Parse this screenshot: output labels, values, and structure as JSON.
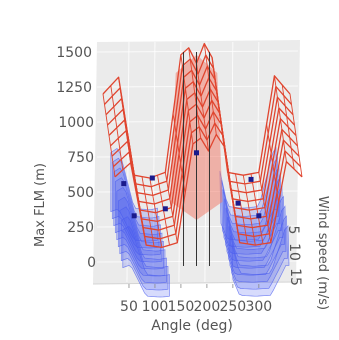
{
  "chart_data": {
    "type": "surface-3d",
    "title": "",
    "xlabel": "Angle (deg)",
    "ylabel": "Wind speed (m/s)",
    "zlabel": "Max FLM (m)",
    "x_ticks": [
      "50",
      "100",
      "150",
      "200",
      "250",
      "300"
    ],
    "y_ticks": [
      "5",
      "10",
      "15"
    ],
    "z_ticks": [
      "0",
      "250",
      "500",
      "750",
      "1000",
      "1250",
      "1500"
    ],
    "xlim": [
      0,
      360
    ],
    "ylim": [
      0,
      20
    ],
    "zlim": [
      0,
      1600
    ],
    "grid": true,
    "background": "#ebebeb",
    "series": [
      {
        "type": "wireframe",
        "color": "#e0452f"
      },
      {
        "type": "surface",
        "color": "#4a5cf0"
      }
    ],
    "wireframe_profile": {
      "angle_deg": [
        0,
        30,
        60,
        90,
        120,
        150,
        165,
        180,
        195,
        210,
        240,
        270,
        300,
        330,
        360
      ],
      "max_flm_m": [
        1200,
        1320,
        620,
        600,
        640,
        1480,
        1530,
        1420,
        1560,
        1460,
        640,
        620,
        640,
        1330,
        1200
      ]
    }
  }
}
